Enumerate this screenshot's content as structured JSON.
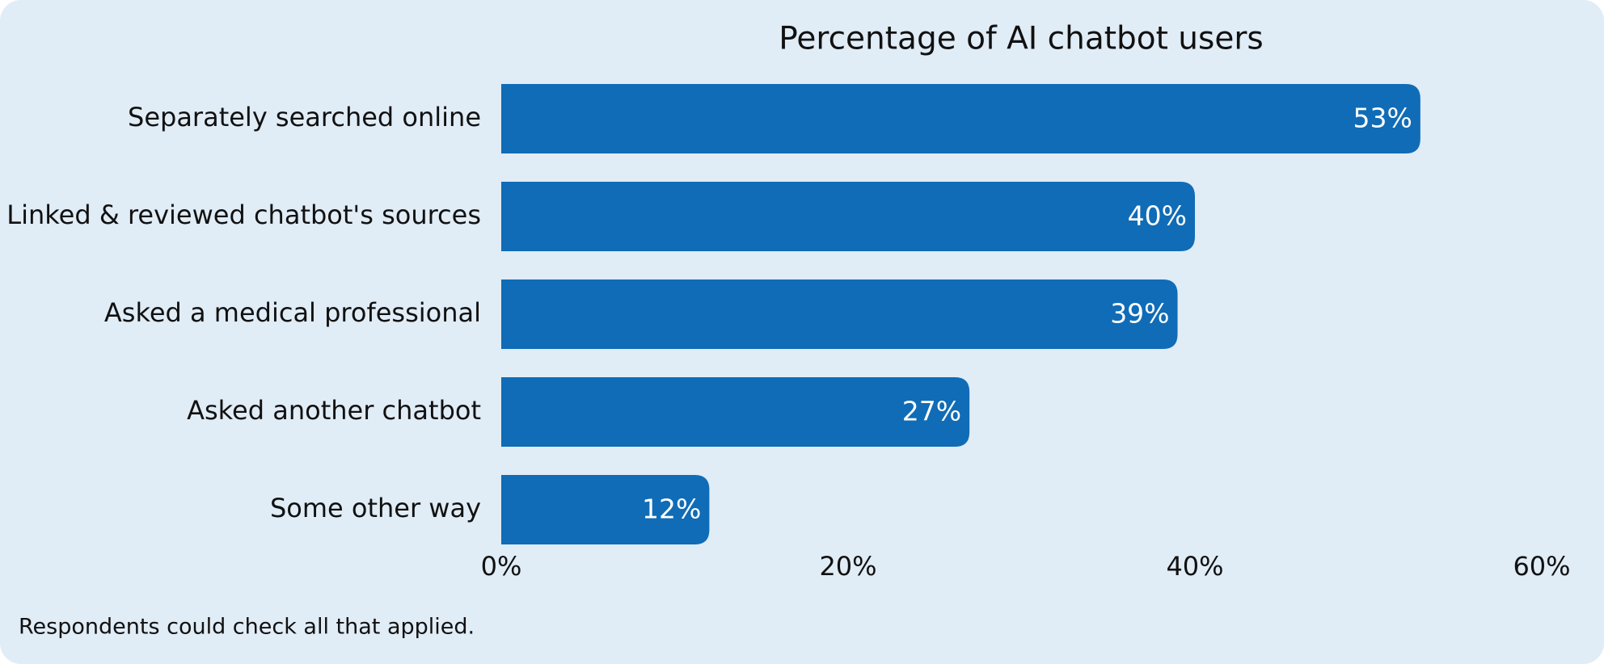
{
  "chart_data": {
    "type": "bar",
    "orientation": "horizontal",
    "title": "Percentage of AI chatbot users",
    "categories": [
      "Separately searched online",
      "Linked & reviewed chatbot's sources",
      "Asked a medical professional",
      "Asked another chatbot",
      "Some other way"
    ],
    "values": [
      53,
      40,
      39,
      27,
      12
    ],
    "value_labels": [
      "53%",
      "40%",
      "39%",
      "27%",
      "12%"
    ],
    "color": "#106cb6",
    "xlim": [
      0,
      60
    ],
    "xticks": [
      {
        "value": 0,
        "label": "0%"
      },
      {
        "value": 20,
        "label": "20%"
      },
      {
        "value": 40,
        "label": "40%"
      },
      {
        "value": 60,
        "label": "60%"
      }
    ],
    "grid": false,
    "note": "Respondents could check all that applied."
  }
}
